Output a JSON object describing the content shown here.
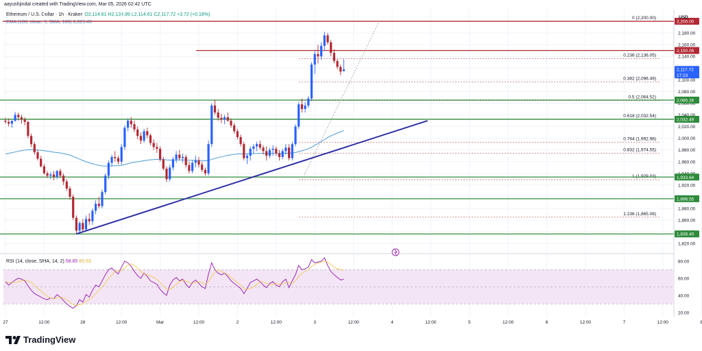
{
  "header": {
    "attribution": "aayushjindal created with TradingView.com, Mar 05, 2026 02:42 UTC",
    "symbol": "Ethereum / U.S. Dollar · 1h · Kraken",
    "ohlc": "O2,114.61  H2,134.99  L2,114.61  C2,117.72  +3.72 (+0.18%)",
    "ema_label": "EMA (100, close, 0, SMA, 100)",
    "ema_value": "2,020.40",
    "rsi_label": "RSI (14, close, SMA, 14, 2)",
    "rsi_value": "58.85",
    "rsi_ma_value": "69.53"
  },
  "logo": {
    "text": "TradingView",
    "icon": "tradingview-logo-icon"
  },
  "currency": "USD",
  "colors": {
    "up": "#2962ff",
    "down": "#b22833",
    "ema": "#4a9bd6",
    "trendline": "#2e2fa3",
    "support": "#2e8b3a",
    "resistance": "#b22833",
    "fib": "#c56a72",
    "rsi": "#9c27b0",
    "rsi_ma": "#f2c53d",
    "rsi_band": "#f3e5f5"
  },
  "chart_data": {
    "type": "candlestick",
    "timeframe": "1h",
    "ylim": [
      1805,
      2220
    ],
    "y_ticks": [
      1820,
      1840,
      1860,
      1880,
      1900,
      1920,
      1940,
      1960,
      1980,
      2000,
      2020,
      2040,
      2060,
      2080,
      2100,
      2120,
      2140,
      2160,
      2180,
      2200
    ],
    "x_ticks": [
      "27",
      "12:00",
      "28",
      "12:00",
      "Mar",
      "12:00",
      "2",
      "12:00",
      "3",
      "12:00",
      "4",
      "12:00",
      "5",
      "12:00",
      "6",
      "12:00",
      "7",
      "12:00",
      "8",
      "12:00",
      "9"
    ],
    "x_tick_bars": [
      0,
      12,
      24,
      36,
      48,
      60,
      72,
      84,
      96,
      108,
      120,
      132,
      144,
      156,
      168,
      180,
      192,
      204,
      216,
      228,
      240
    ],
    "candles": [
      [
        2030,
        2035,
        2025,
        2028
      ],
      [
        2028,
        2034,
        2020,
        2025
      ],
      [
        2025,
        2030,
        2018,
        2030
      ],
      [
        2030,
        2045,
        2028,
        2040
      ],
      [
        2040,
        2044,
        2030,
        2036
      ],
      [
        2036,
        2040,
        2025,
        2032
      ],
      [
        2032,
        2036,
        2022,
        2028
      ],
      [
        2028,
        2030,
        2000,
        2004
      ],
      [
        2004,
        2008,
        1985,
        1990
      ],
      [
        1990,
        1994,
        1972,
        1976
      ],
      [
        1976,
        1980,
        1962,
        1965
      ],
      [
        1965,
        1970,
        1950,
        1952
      ],
      [
        1952,
        1956,
        1938,
        1940
      ],
      [
        1940,
        1944,
        1932,
        1936
      ],
      [
        1936,
        1942,
        1930,
        1938
      ],
      [
        1938,
        1944,
        1928,
        1934
      ],
      [
        1934,
        1946,
        1930,
        1944
      ],
      [
        1944,
        1948,
        1932,
        1936
      ],
      [
        1936,
        1940,
        1920,
        1926
      ],
      [
        1926,
        1930,
        1910,
        1914
      ],
      [
        1914,
        1918,
        1895,
        1900
      ],
      [
        1900,
        1904,
        1860,
        1864
      ],
      [
        1864,
        1868,
        1836,
        1842
      ],
      [
        1842,
        1858,
        1836,
        1855
      ],
      [
        1855,
        1862,
        1840,
        1844
      ],
      [
        1844,
        1868,
        1840,
        1862
      ],
      [
        1862,
        1872,
        1852,
        1858
      ],
      [
        1858,
        1880,
        1852,
        1876
      ],
      [
        1876,
        1894,
        1870,
        1888
      ],
      [
        1888,
        1900,
        1880,
        1884
      ],
      [
        1884,
        1912,
        1880,
        1908
      ],
      [
        1908,
        1940,
        1904,
        1936
      ],
      [
        1936,
        1962,
        1930,
        1958
      ],
      [
        1958,
        1972,
        1952,
        1968
      ],
      [
        1968,
        1978,
        1960,
        1966
      ],
      [
        1966,
        1970,
        1955,
        1960
      ],
      [
        1960,
        1990,
        1955,
        1985
      ],
      [
        1985,
        2022,
        1980,
        2018
      ],
      [
        2018,
        2034,
        2012,
        2030
      ],
      [
        2030,
        2036,
        2018,
        2024
      ],
      [
        2024,
        2030,
        2010,
        2015
      ],
      [
        2015,
        2020,
        1998,
        2004
      ],
      [
        2004,
        2010,
        1990,
        1996
      ],
      [
        1996,
        2016,
        1992,
        2012
      ],
      [
        2012,
        2018,
        2000,
        2005
      ],
      [
        2005,
        2008,
        1988,
        1992
      ],
      [
        1992,
        1998,
        1980,
        1985
      ],
      [
        1985,
        1992,
        1975,
        1982
      ],
      [
        1982,
        1986,
        1960,
        1964
      ],
      [
        1964,
        1968,
        1945,
        1948
      ],
      [
        1948,
        1952,
        1925,
        1930
      ],
      [
        1930,
        1955,
        1926,
        1950
      ],
      [
        1950,
        1968,
        1945,
        1964
      ],
      [
        1964,
        1978,
        1958,
        1972
      ],
      [
        1972,
        1980,
        1962,
        1966
      ],
      [
        1966,
        1974,
        1958,
        1968
      ],
      [
        1968,
        1972,
        1950,
        1954
      ],
      [
        1954,
        1960,
        1940,
        1944
      ],
      [
        1944,
        1962,
        1940,
        1958
      ],
      [
        1958,
        1970,
        1950,
        1962
      ],
      [
        1962,
        1968,
        1950,
        1955
      ],
      [
        1955,
        1960,
        1942,
        1946
      ],
      [
        1946,
        1950,
        1936,
        1940
      ],
      [
        1940,
        1996,
        1936,
        1990
      ],
      [
        1990,
        2060,
        1985,
        2056
      ],
      [
        2056,
        2066,
        2040,
        2044
      ],
      [
        2044,
        2050,
        2030,
        2035
      ],
      [
        2035,
        2042,
        2026,
        2032
      ],
      [
        2032,
        2040,
        2024,
        2036
      ],
      [
        2036,
        2044,
        2028,
        2030
      ],
      [
        2030,
        2034,
        2018,
        2022
      ],
      [
        2022,
        2026,
        2008,
        2012
      ],
      [
        2012,
        2016,
        1998,
        2002
      ],
      [
        2002,
        2006,
        1986,
        1990
      ],
      [
        1990,
        1994,
        1962,
        1966
      ],
      [
        1966,
        1974,
        1956,
        1970
      ],
      [
        1970,
        1986,
        1962,
        1982
      ],
      [
        1982,
        1990,
        1974,
        1986
      ],
      [
        1986,
        1994,
        1978,
        1990
      ],
      [
        1990,
        1996,
        1980,
        1984
      ],
      [
        1984,
        1988,
        1972,
        1978
      ],
      [
        1978,
        1986,
        1962,
        1970
      ],
      [
        1970,
        1984,
        1966,
        1980
      ],
      [
        1980,
        1988,
        1970,
        1982
      ],
      [
        1982,
        1986,
        1970,
        1974
      ],
      [
        1974,
        1980,
        1962,
        1968
      ],
      [
        1968,
        1982,
        1964,
        1978
      ],
      [
        1978,
        1990,
        1972,
        1984
      ],
      [
        1984,
        1990,
        1962,
        1966
      ],
      [
        1966,
        1994,
        1962,
        1990
      ],
      [
        1990,
        2024,
        1986,
        2020
      ],
      [
        2020,
        2062,
        2016,
        2058
      ],
      [
        2058,
        2068,
        2044,
        2050
      ],
      [
        2050,
        2062,
        2044,
        2056
      ],
      [
        2056,
        2072,
        2052,
        2068
      ],
      [
        2068,
        2130,
        2064,
        2126
      ],
      [
        2126,
        2150,
        2110,
        2144
      ],
      [
        2144,
        2160,
        2128,
        2140
      ],
      [
        2140,
        2164,
        2134,
        2158
      ],
      [
        2158,
        2182,
        2150,
        2176
      ],
      [
        2176,
        2180,
        2160,
        2164
      ],
      [
        2164,
        2168,
        2140,
        2146
      ],
      [
        2146,
        2152,
        2128,
        2132
      ],
      [
        2132,
        2136,
        2118,
        2122
      ],
      [
        2122,
        2126,
        2108,
        2114
      ],
      [
        2114.61,
        2134.99,
        2114.61,
        2117.72
      ]
    ],
    "ema_start_value": 1972
  },
  "levels": {
    "resistance": [
      {
        "value": 2200,
        "label": "2,200.00",
        "x_start_bar": 0
      },
      {
        "value": 2150.06,
        "label": "2,150.06",
        "x_start_bar": 60
      }
    ],
    "support": [
      {
        "value": 2065.26,
        "label": "2,065.26"
      },
      {
        "value": 2032.49,
        "label": "2,032.49"
      },
      {
        "value": 1933.64,
        "label": "1,933.64"
      },
      {
        "value": 1896.55,
        "label": "1,896.55"
      },
      {
        "value": 1836.4,
        "label": "1,836.40"
      }
    ],
    "current_price": {
      "value": 2117.72,
      "label": "2,117.72",
      "timer": "17:23"
    },
    "fib": [
      {
        "ratio": "0",
        "value": 2200.0,
        "label": "0 (2,200.00)"
      },
      {
        "ratio": "0.236",
        "value": 2136.05,
        "label": "0.236 (2,136.05)"
      },
      {
        "ratio": "0.382",
        "value": 2096.49,
        "label": "0.382 (2,096.49)"
      },
      {
        "ratio": "0.5",
        "value": 2064.52,
        "label": "0.5 (2,064.52)"
      },
      {
        "ratio": "0.618",
        "value": 2032.54,
        "label": "0.618 (2,032.54)"
      },
      {
        "ratio": "0.764",
        "value": 1992.98,
        "label": "0.764 (1,992.98)"
      },
      {
        "ratio": "0.832",
        "value": 1974.55,
        "label": "0.832 (1,974.55)"
      },
      {
        "ratio": "1",
        "value": 1929.03,
        "label": "1 (1,929.03)"
      },
      {
        "ratio": "1.236",
        "value": 1865.08,
        "label": "1.236 (1,865.08)"
      }
    ],
    "trendline": {
      "bar_start": 22,
      "value_start": 1836.4,
      "bar_end": 131,
      "value_end": 2030
    }
  },
  "rsi": {
    "ylim": [
      15,
      88
    ],
    "ticks": [
      20,
      40,
      60,
      80
    ],
    "band": [
      30,
      70
    ],
    "values": [
      56,
      52,
      55,
      58,
      60,
      59,
      57,
      51,
      46,
      42,
      40,
      38,
      36,
      35,
      37,
      36,
      41,
      38,
      34,
      30,
      27,
      25,
      28,
      35,
      32,
      41,
      38,
      46,
      52,
      50,
      57,
      64,
      70,
      72,
      68,
      65,
      73,
      80,
      78,
      74,
      68,
      63,
      60,
      66,
      62,
      57,
      55,
      53,
      47,
      43,
      40,
      52,
      58,
      61,
      57,
      59,
      53,
      49,
      55,
      58,
      54,
      50,
      48,
      65,
      78,
      70,
      66,
      64,
      66,
      62,
      57,
      54,
      51,
      48,
      42,
      48,
      55,
      57,
      59,
      56,
      52,
      49,
      54,
      56,
      52,
      50,
      56,
      59,
      49,
      57,
      64,
      75,
      70,
      71,
      73,
      82,
      78,
      79,
      80,
      84,
      75,
      68,
      64,
      61,
      58,
      58.85
    ],
    "ma_values": [
      56,
      55,
      55,
      55,
      56,
      57,
      58,
      57,
      55,
      52,
      48,
      45,
      42,
      39,
      37,
      36,
      37,
      38,
      37,
      35,
      32,
      29,
      28,
      29,
      30,
      33,
      35,
      38,
      42,
      46,
      50,
      54,
      60,
      64,
      68,
      69,
      69,
      72,
      75,
      77,
      75,
      72,
      68,
      65,
      64,
      63,
      61,
      59,
      55,
      51,
      47,
      47,
      49,
      53,
      56,
      58,
      57,
      55,
      54,
      55,
      56,
      55,
      53,
      56,
      62,
      67,
      70,
      68,
      66,
      64,
      61,
      58,
      55,
      52,
      48,
      47,
      48,
      50,
      53,
      56,
      56,
      54,
      52,
      53,
      54,
      53,
      53,
      55,
      55,
      54,
      57,
      62,
      66,
      68,
      70,
      74,
      76,
      78,
      79,
      80,
      79,
      76,
      73,
      71,
      70,
      69.53
    ]
  }
}
